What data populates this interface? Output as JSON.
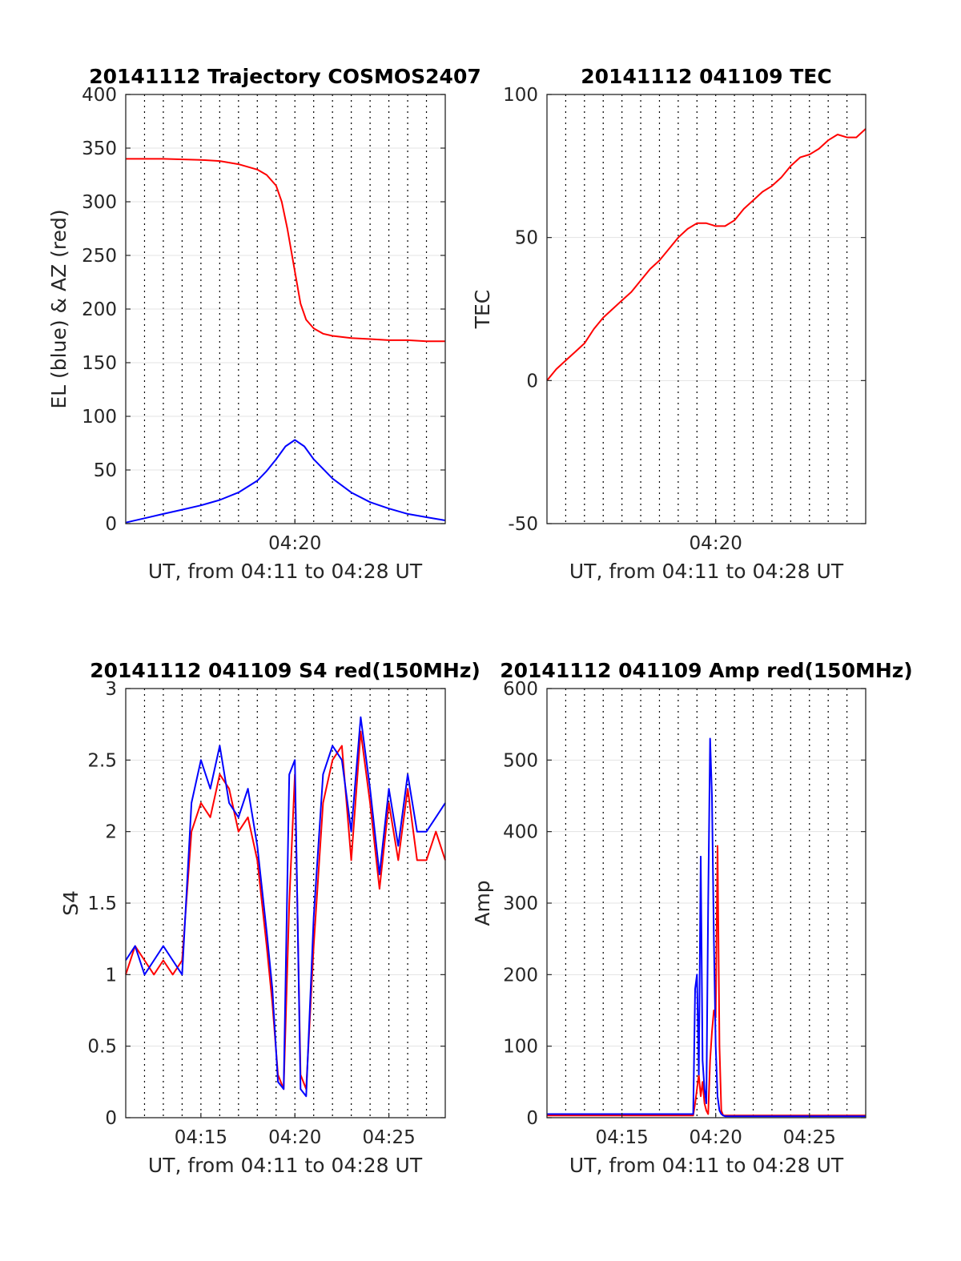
{
  "chart_data": [
    {
      "type": "line",
      "title": "20141112 Trajectory COSMOS2407",
      "xlabel": "UT, from 04:11 to 04:28 UT",
      "ylabel": "EL (blue) & AZ (red)",
      "xlim": [
        0,
        17
      ],
      "ylim": [
        0,
        400
      ],
      "yticks": [
        0,
        50,
        100,
        150,
        200,
        250,
        300,
        350,
        400
      ],
      "xtick_labels": [
        {
          "x": 9,
          "label": "04:20"
        }
      ],
      "minor_dotted_grid_x": true,
      "grid": true,
      "series": [
        {
          "color": "#ff0000",
          "x": [
            0,
            2,
            4,
            5,
            6,
            7,
            7.5,
            8,
            8.3,
            8.6,
            9.0,
            9.3,
            9.6,
            10,
            10.5,
            11,
            12,
            13,
            14,
            15,
            16,
            17
          ],
          "y": [
            340,
            340,
            339,
            338,
            335,
            330,
            325,
            315,
            300,
            275,
            235,
            205,
            190,
            182,
            177,
            175,
            173,
            172,
            171,
            171,
            170,
            170
          ]
        },
        {
          "color": "#0000ff",
          "x": [
            0,
            1,
            2,
            3,
            4,
            5,
            6,
            7,
            7.5,
            8,
            8.5,
            9.0,
            9.5,
            10,
            11,
            12,
            13,
            14,
            15,
            16,
            17
          ],
          "y": [
            1,
            5,
            9,
            13,
            17,
            22,
            29,
            40,
            49,
            60,
            72,
            78,
            72,
            60,
            42,
            29,
            20,
            14,
            9,
            6,
            3
          ]
        }
      ]
    },
    {
      "type": "line",
      "title": "20141112 041109 TEC",
      "xlabel": "UT, from 04:11 to 04:28 UT",
      "ylabel": "TEC",
      "xlim": [
        0,
        17
      ],
      "ylim": [
        -50,
        100
      ],
      "yticks": [
        -50,
        0,
        50,
        100
      ],
      "xtick_labels": [
        {
          "x": 9,
          "label": "04:20"
        }
      ],
      "minor_dotted_grid_x": true,
      "grid": true,
      "series": [
        {
          "color": "#ff0000",
          "x": [
            0,
            0.5,
            1,
            1.5,
            2,
            2.5,
            3,
            3.5,
            4,
            4.5,
            5,
            5.5,
            6,
            6.5,
            7,
            7.5,
            8,
            8.5,
            9,
            9.5,
            10,
            10.5,
            11,
            11.5,
            12,
            12.5,
            13,
            13.5,
            14,
            14.5,
            15,
            15.5,
            16,
            16.5,
            17
          ],
          "y": [
            0,
            4,
            7,
            10,
            13,
            18,
            22,
            25,
            28,
            31,
            35,
            39,
            42,
            46,
            50,
            53,
            55,
            55,
            54,
            54,
            56,
            60,
            63,
            66,
            68,
            71,
            75,
            78,
            79,
            81,
            84,
            86,
            85,
            85,
            88
          ]
        }
      ]
    },
    {
      "type": "line",
      "title": "20141112 041109 S4 red(150MHz)",
      "xlabel": "UT, from 04:11 to 04:28 UT",
      "ylabel": "S4",
      "xlim": [
        0,
        17
      ],
      "ylim": [
        0,
        3
      ],
      "yticks": [
        0,
        0.5,
        1,
        1.5,
        2,
        2.5,
        3
      ],
      "ytick_labels": [
        "0",
        "0.5",
        "1",
        "1.5",
        "2",
        "2.5",
        "3"
      ],
      "xtick_labels": [
        {
          "x": 4,
          "label": "04:15"
        },
        {
          "x": 9,
          "label": "04:20"
        },
        {
          "x": 14,
          "label": "04:25"
        }
      ],
      "minor_dotted_grid_x": true,
      "grid": true,
      "series": [
        {
          "color": "#ff0000",
          "x": [
            0,
            0.5,
            1,
            1.5,
            2,
            2.5,
            3,
            3.5,
            4,
            4.5,
            5,
            5.5,
            6,
            6.5,
            7,
            7.5,
            7.8,
            8.1,
            8.4,
            8.7,
            9.0,
            9.3,
            9.6,
            10,
            10.5,
            11,
            11.5,
            12,
            12.5,
            13,
            13.5,
            14,
            14.5,
            15,
            15.5,
            16,
            16.5,
            17
          ],
          "y": [
            1.0,
            1.2,
            1.1,
            1.0,
            1.1,
            1.0,
            1.1,
            2.0,
            2.2,
            2.1,
            2.4,
            2.3,
            2.0,
            2.1,
            1.8,
            1.2,
            0.8,
            0.3,
            0.2,
            1.5,
            2.4,
            0.3,
            0.2,
            1.2,
            2.2,
            2.5,
            2.6,
            1.8,
            2.7,
            2.2,
            1.6,
            2.2,
            1.8,
            2.3,
            1.8,
            1.8,
            2.0,
            1.8
          ]
        },
        {
          "color": "#0000ff",
          "x": [
            0,
            0.5,
            1,
            1.5,
            2,
            2.5,
            3,
            3.5,
            4,
            4.5,
            5,
            5.5,
            6,
            6.5,
            7,
            7.5,
            7.8,
            8.1,
            8.4,
            8.7,
            9.0,
            9.3,
            9.6,
            10,
            10.5,
            11,
            11.5,
            12,
            12.5,
            13,
            13.5,
            14,
            14.5,
            15,
            15.5,
            16,
            16.5,
            17
          ],
          "y": [
            1.1,
            1.2,
            1.0,
            1.1,
            1.2,
            1.1,
            1.0,
            2.2,
            2.5,
            2.3,
            2.6,
            2.2,
            2.1,
            2.3,
            1.9,
            1.3,
            0.9,
            0.25,
            0.2,
            2.4,
            2.5,
            0.2,
            0.15,
            1.4,
            2.4,
            2.6,
            2.5,
            2.0,
            2.8,
            2.3,
            1.7,
            2.3,
            1.9,
            2.4,
            2.0,
            2.0,
            2.1,
            2.2
          ]
        }
      ]
    },
    {
      "type": "line",
      "title": "20141112 041109 Amp red(150MHz)",
      "xlabel": "UT, from 04:11 to 04:28 UT",
      "ylabel": "Amp",
      "xlim": [
        0,
        17
      ],
      "ylim": [
        0,
        600
      ],
      "yticks": [
        0,
        100,
        200,
        300,
        400,
        500,
        600
      ],
      "xtick_labels": [
        {
          "x": 4,
          "label": "04:15"
        },
        {
          "x": 9,
          "label": "04:20"
        },
        {
          "x": 14,
          "label": "04:25"
        }
      ],
      "minor_dotted_grid_x": true,
      "grid": true,
      "series": [
        {
          "color": "#ff0000",
          "x": [
            0,
            7.8,
            7.9,
            8.0,
            8.1,
            8.2,
            8.3,
            8.4,
            8.5,
            8.6,
            8.7,
            8.8,
            8.9,
            9.0,
            9.1,
            9.2,
            9.3,
            9.4,
            9.5,
            17
          ],
          "y": [
            3,
            3,
            20,
            40,
            60,
            30,
            50,
            20,
            10,
            5,
            80,
            120,
            150,
            140,
            380,
            100,
            10,
            3,
            3,
            3
          ]
        },
        {
          "color": "#0000ff",
          "x": [
            0,
            7.8,
            7.9,
            8.0,
            8.1,
            8.2,
            8.3,
            8.4,
            8.5,
            8.6,
            8.7,
            8.8,
            8.9,
            9.0,
            9.1,
            9.2,
            9.3,
            9.4,
            9.5,
            17
          ],
          "y": [
            5,
            5,
            180,
            200,
            60,
            365,
            80,
            40,
            20,
            300,
            530,
            450,
            250,
            100,
            30,
            10,
            5,
            3,
            2,
            2
          ]
        }
      ]
    }
  ]
}
